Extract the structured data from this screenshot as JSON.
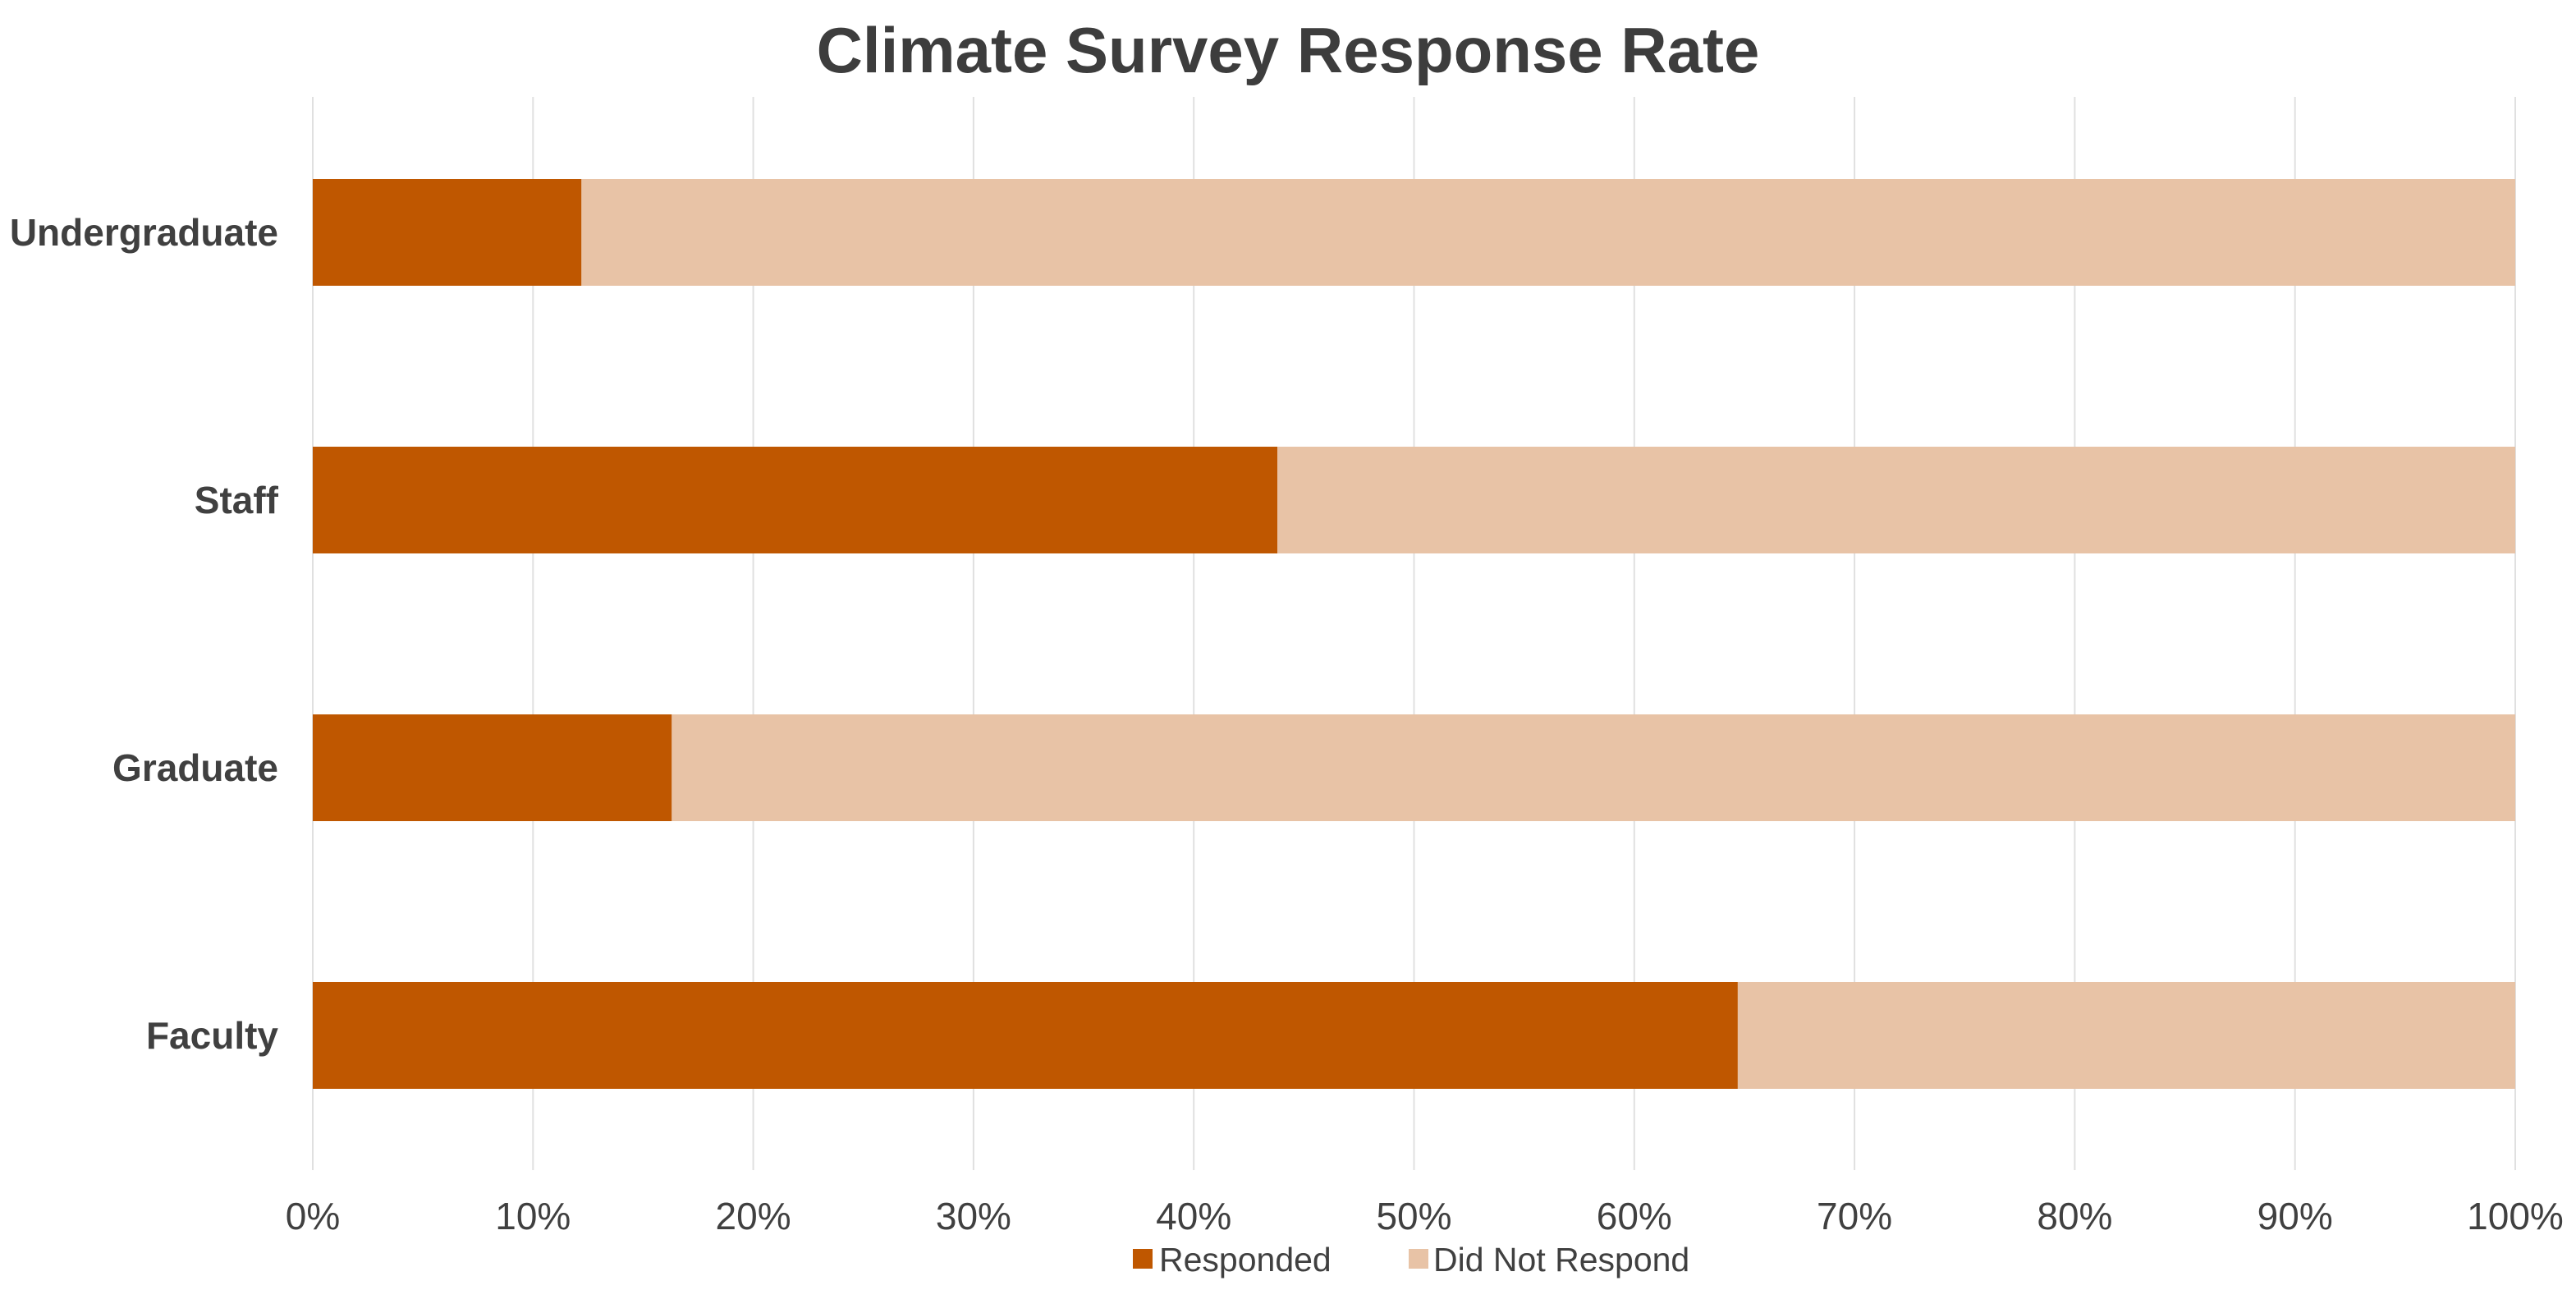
{
  "chart_data": {
    "type": "bar",
    "orientation": "horizontal",
    "stacked": true,
    "title": "Climate Survey Response Rate",
    "xlabel": "",
    "ylabel": "",
    "categories": [
      "Undergraduate",
      "Staff",
      "Graduate",
      "Faculty"
    ],
    "series": [
      {
        "name": "Responded",
        "color": "#bf5700",
        "values": [
          12.2,
          43.8,
          16.3,
          64.7
        ]
      },
      {
        "name": "Did Not Respond",
        "color": "#e8c3a6",
        "values": [
          87.8,
          56.2,
          83.7,
          35.3
        ]
      }
    ],
    "xlim": [
      0,
      100
    ],
    "xticks": [
      "0%",
      "10%",
      "20%",
      "30%",
      "40%",
      "50%",
      "60%",
      "70%",
      "80%",
      "90%",
      "100%"
    ],
    "grid": "vertical",
    "legend": "bottom-center"
  }
}
